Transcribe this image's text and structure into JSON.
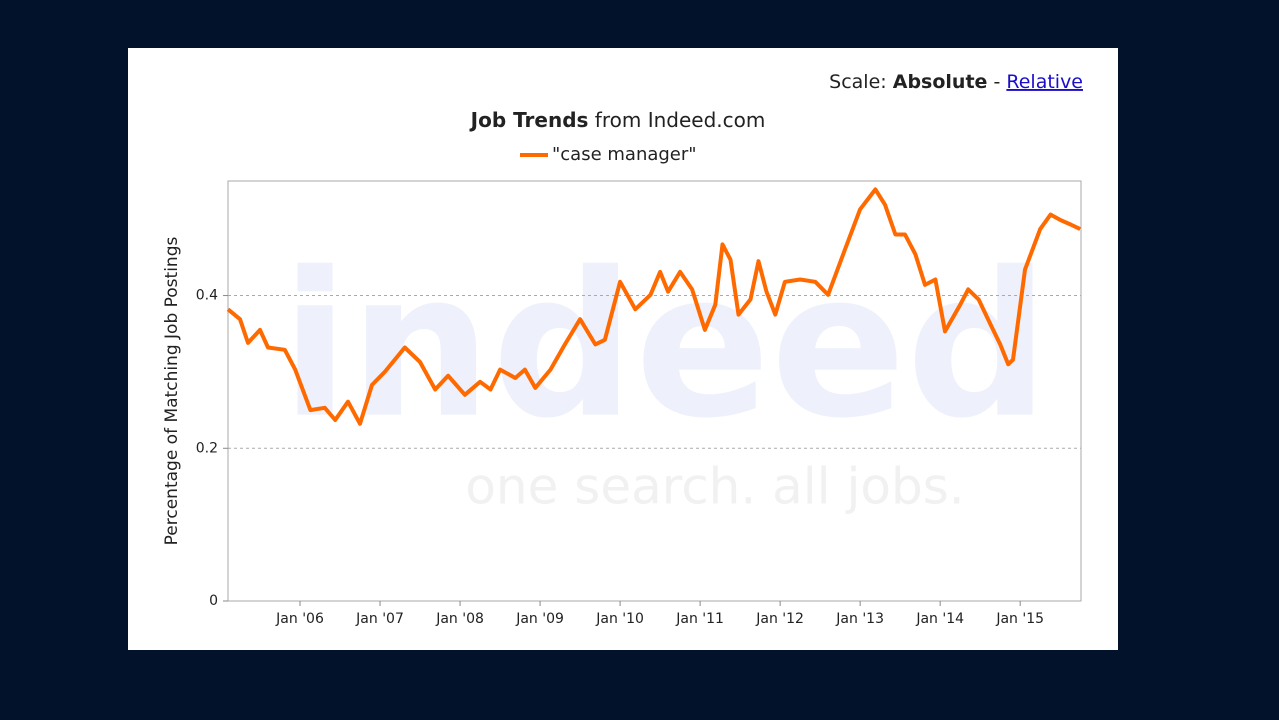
{
  "chart_data": {
    "type": "line",
    "scale_label": "Scale:",
    "scale_options": [
      "Absolute",
      "Relative"
    ],
    "scale_separator": "-",
    "title": "Job Trends",
    "title_suffix": "from Indeed.com",
    "ylabel": "Percentage of Matching Job Postings",
    "watermark": {
      "logo": "indeed",
      "tagline": "one search. all jobs."
    },
    "xlim": [
      2005.1,
      2015.76
    ],
    "xticks": [
      {
        "value": 2006,
        "label": "Jan '06"
      },
      {
        "value": 2007,
        "label": "Jan '07"
      },
      {
        "value": 2008,
        "label": "Jan '08"
      },
      {
        "value": 2009,
        "label": "Jan '09"
      },
      {
        "value": 2010,
        "label": "Jan '10"
      },
      {
        "value": 2011,
        "label": "Jan '11"
      },
      {
        "value": 2012,
        "label": "Jan '12"
      },
      {
        "value": 2013,
        "label": "Jan '13"
      },
      {
        "value": 2014,
        "label": "Jan '14"
      },
      {
        "value": 2015,
        "label": "Jan '15"
      }
    ],
    "ylim": [
      0,
      0.55
    ],
    "yticks": [
      0,
      0.2,
      0.4
    ],
    "grid": true,
    "x": [
      2005.1,
      2005.25,
      2005.35,
      2005.5,
      2005.6,
      2005.81,
      2005.94,
      2006.13,
      2006.31,
      2006.44,
      2006.6,
      2006.75,
      2006.9,
      2007.06,
      2007.31,
      2007.5,
      2007.69,
      2007.85,
      2008.06,
      2008.25,
      2008.38,
      2008.5,
      2008.69,
      2008.81,
      2008.94,
      2009.13,
      2009.31,
      2009.5,
      2009.69,
      2009.81,
      2010,
      2010.19,
      2010.38,
      2010.5,
      2010.6,
      2010.75,
      2010.9,
      2011.06,
      2011.19,
      2011.28,
      2011.38,
      2011.48,
      2011.63,
      2011.73,
      2011.83,
      2011.94,
      2012.06,
      2012.25,
      2012.44,
      2012.6,
      2012.81,
      2013,
      2013.19,
      2013.31,
      2013.44,
      2013.56,
      2013.69,
      2013.81,
      2013.94,
      2014.06,
      2014.25,
      2014.35,
      2014.48,
      2014.63,
      2014.75,
      2014.85,
      2014.91,
      2015.06,
      2015.25,
      2015.38,
      2015.5,
      2015.63,
      2015.75
    ],
    "series": [
      {
        "name": "\"case manager\"",
        "color": "#ff6a00",
        "values": [
          0.382,
          0.369,
          0.338,
          0.355,
          0.332,
          0.329,
          0.303,
          0.25,
          0.253,
          0.237,
          0.261,
          0.232,
          0.283,
          0.3,
          0.332,
          0.313,
          0.277,
          0.295,
          0.27,
          0.287,
          0.277,
          0.303,
          0.292,
          0.303,
          0.279,
          0.303,
          0.336,
          0.369,
          0.336,
          0.342,
          0.418,
          0.382,
          0.401,
          0.431,
          0.405,
          0.431,
          0.408,
          0.355,
          0.388,
          0.467,
          0.447,
          0.375,
          0.395,
          0.445,
          0.405,
          0.375,
          0.418,
          0.421,
          0.418,
          0.401,
          0.46,
          0.513,
          0.539,
          0.519,
          0.48,
          0.48,
          0.454,
          0.414,
          0.421,
          0.353,
          0.388,
          0.408,
          0.395,
          0.362,
          0.336,
          0.31,
          0.316,
          0.434,
          0.487,
          0.506,
          0.499,
          0.493,
          0.487
        ]
      }
    ]
  }
}
